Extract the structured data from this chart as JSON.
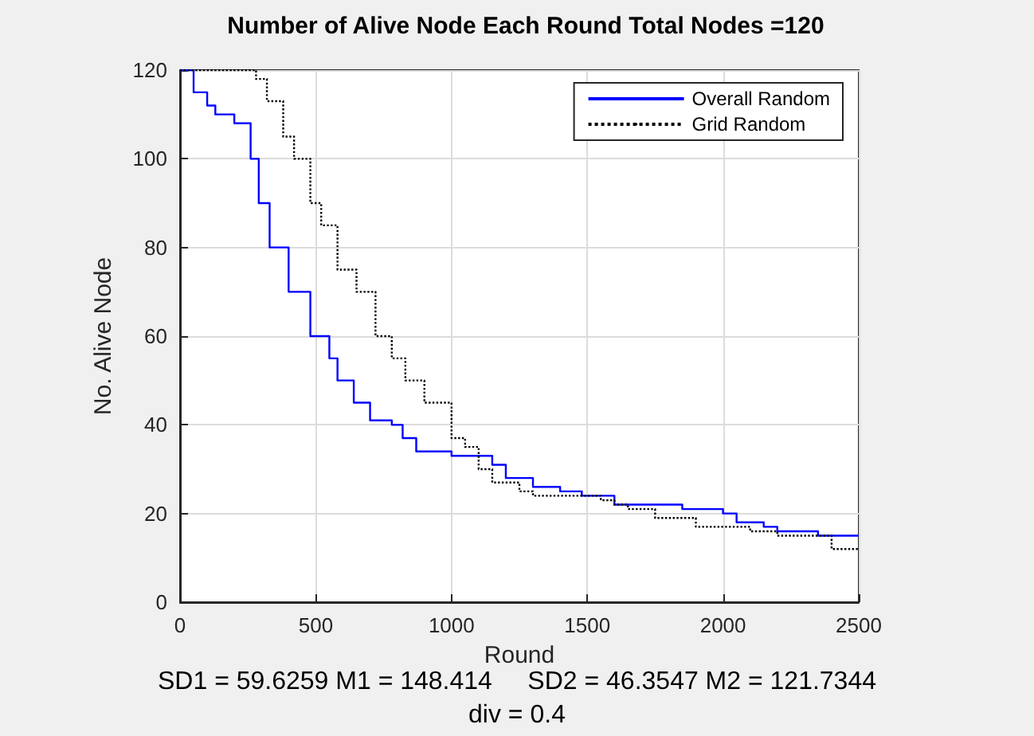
{
  "chart_data": {
    "type": "step",
    "title": "Number of Alive Node Each Round Total Nodes =120",
    "xlabel": "Round",
    "ylabel": "No. Alive Node",
    "annotations": [
      "SD1 = 59.6259 M1 = 148.414     SD2 = 46.3547 M2 = 121.7344",
      "div = 0.4"
    ],
    "series": [
      {
        "name": "Overall Random",
        "color": "#0000ff",
        "line_style": "solid",
        "x": [
          0,
          50,
          100,
          130,
          200,
          260,
          290,
          330,
          400,
          480,
          550,
          580,
          640,
          700,
          780,
          820,
          870,
          1000,
          1150,
          1200,
          1300,
          1400,
          1480,
          1600,
          1850,
          2000,
          2050,
          2150,
          2200,
          2350,
          2500
        ],
        "values": [
          120,
          115,
          112,
          110,
          108,
          100,
          90,
          80,
          70,
          60,
          55,
          50,
          45,
          41,
          40,
          37,
          34,
          33,
          31,
          28,
          26,
          25,
          24,
          22,
          21,
          20,
          18,
          17,
          16,
          15,
          15
        ]
      },
      {
        "name": "Grid Random",
        "color": "#000000",
        "line_style": "dotted",
        "x": [
          0,
          230,
          280,
          320,
          380,
          420,
          480,
          520,
          580,
          650,
          720,
          780,
          830,
          900,
          1000,
          1050,
          1100,
          1150,
          1250,
          1300,
          1550,
          1600,
          1650,
          1750,
          1900,
          2100,
          2200,
          2400,
          2500
        ],
        "values": [
          120,
          120,
          118,
          113,
          105,
          100,
          90,
          85,
          75,
          70,
          60,
          55,
          50,
          45,
          37,
          35,
          30,
          27,
          25,
          24,
          23,
          22,
          21,
          19,
          17,
          16,
          15,
          12,
          12
        ]
      }
    ],
    "xlim": [
      0,
      2500
    ],
    "xticks": [
      0,
      500,
      1000,
      1500,
      2000,
      2500
    ],
    "ylim": [
      0,
      120
    ],
    "yticks": [
      0,
      20,
      40,
      60,
      80,
      100,
      120
    ],
    "grid": true,
    "legend": "top right"
  }
}
